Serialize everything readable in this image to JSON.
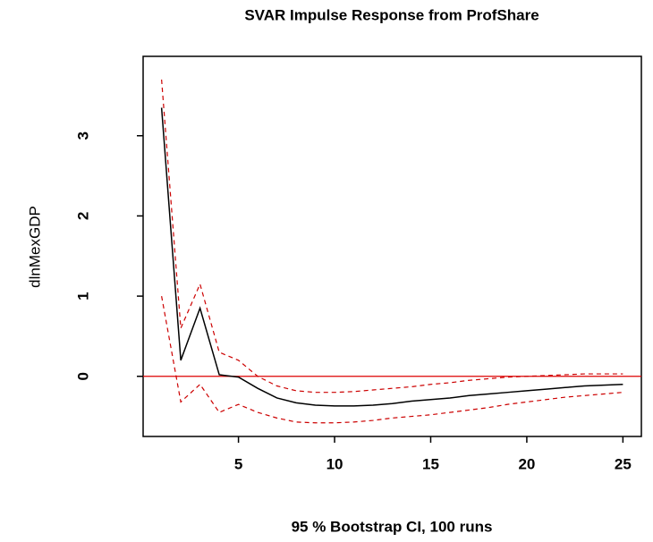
{
  "chart_data": {
    "type": "line",
    "title": "SVAR Impulse Response from ProfShare",
    "ylabel": "dlnMexGDP",
    "xlabel": "95 % Bootstrap CI,  100 runs",
    "x": [
      1,
      2,
      3,
      4,
      5,
      6,
      7,
      8,
      9,
      10,
      11,
      12,
      13,
      14,
      15,
      16,
      17,
      18,
      19,
      20,
      21,
      22,
      23,
      24,
      25
    ],
    "series": [
      {
        "color": "#000000",
        "dashed": false,
        "values": [
          3.35,
          0.2,
          0.85,
          0.02,
          -0.01,
          -0.15,
          -0.27,
          -0.33,
          -0.36,
          -0.37,
          -0.37,
          -0.36,
          -0.34,
          -0.31,
          -0.29,
          -0.27,
          -0.24,
          -0.22,
          -0.2,
          -0.18,
          -0.16,
          -0.14,
          -0.12,
          -0.11,
          -0.1
        ]
      },
      {
        "color": "#cc0000",
        "dashed": true,
        "values": [
          3.7,
          0.6,
          1.15,
          0.3,
          0.2,
          0.0,
          -0.12,
          -0.18,
          -0.2,
          -0.2,
          -0.19,
          -0.17,
          -0.15,
          -0.13,
          -0.1,
          -0.08,
          -0.05,
          -0.03,
          -0.01,
          0.0,
          0.01,
          0.02,
          0.03,
          0.03,
          0.03
        ]
      },
      {
        "color": "#cc0000",
        "dashed": true,
        "values": [
          1.0,
          -0.32,
          -0.1,
          -0.45,
          -0.35,
          -0.45,
          -0.52,
          -0.57,
          -0.58,
          -0.58,
          -0.57,
          -0.55,
          -0.52,
          -0.5,
          -0.48,
          -0.45,
          -0.42,
          -0.39,
          -0.35,
          -0.32,
          -0.29,
          -0.26,
          -0.24,
          -0.22,
          -0.2
        ]
      }
    ],
    "hline": 0,
    "hline_color": "#dd0000",
    "xlim": [
      0.04,
      25.96
    ],
    "ylim": [
      -0.75,
      3.99
    ],
    "xticks": [
      5,
      10,
      15,
      20,
      25
    ],
    "yticks": [
      0,
      1,
      2,
      3
    ]
  }
}
